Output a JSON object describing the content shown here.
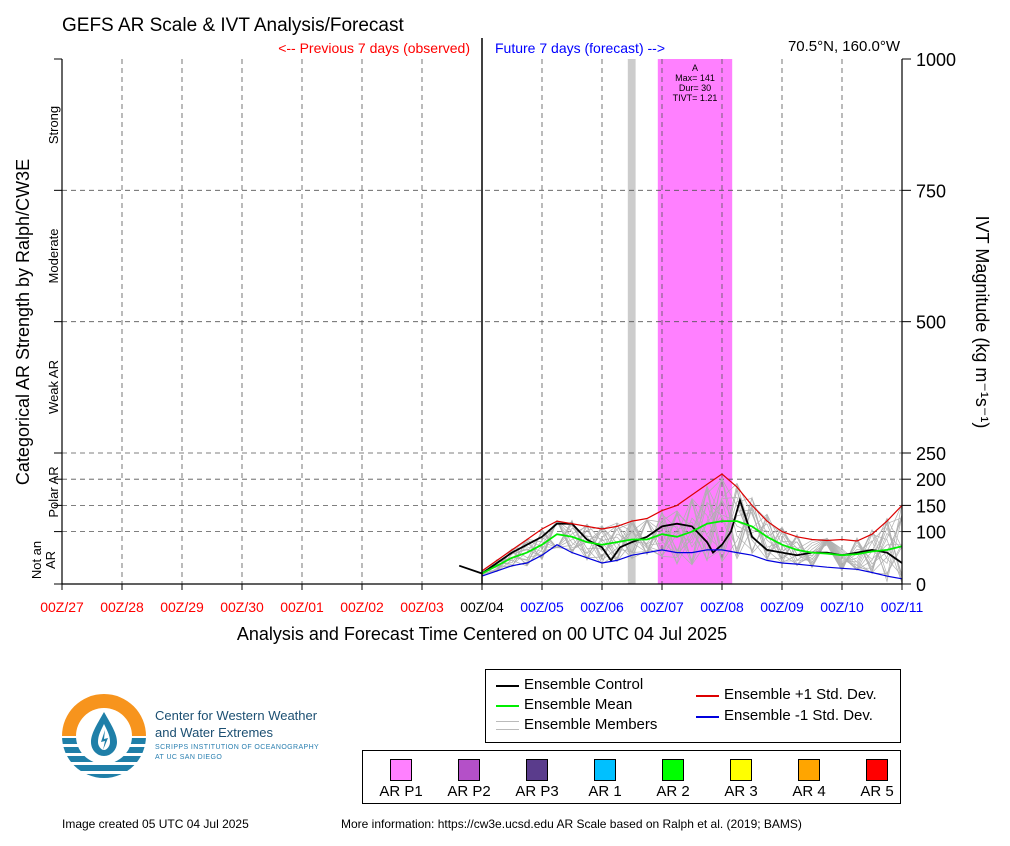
{
  "chart_data": {
    "type": "line",
    "title": "GEFS AR Scale & IVT Analysis/Forecast",
    "location": "70.5°N, 160.0°W",
    "observed_label": "<-- Previous 7 days (observed)",
    "forecast_label": "Future 7 days (forecast) -->",
    "xlabel": "Analysis and Forecast Time Centered on 00 UTC 04 Jul 2025",
    "ylabel_left": "Categorical AR Strength by Ralph/CW3E",
    "ylabel_right": "IVT Magnitude (kg m⁻¹s⁻¹)",
    "x_ticks": [
      "00Z/27",
      "00Z/28",
      "00Z/29",
      "00Z/30",
      "00Z/01",
      "00Z/02",
      "00Z/03",
      "00Z/04",
      "00Z/05",
      "00Z/06",
      "00Z/07",
      "00Z/08",
      "00Z/09",
      "00Z/10",
      "00Z/11"
    ],
    "x_tick_colors": [
      "#ff0000",
      "#ff0000",
      "#ff0000",
      "#ff0000",
      "#ff0000",
      "#ff0000",
      "#ff0000",
      "#000000",
      "#0000ff",
      "#0000ff",
      "#0000ff",
      "#0000ff",
      "#0000ff",
      "#0000ff",
      "#0000ff"
    ],
    "analysis_time_day": 7,
    "y_ticks": [
      0,
      100,
      150,
      200,
      250,
      500,
      750,
      1000
    ],
    "ylim": [
      0,
      1000
    ],
    "xlim_days": [
      0,
      14
    ],
    "categories": [
      "Not an AR",
      "Polar AR",
      "Weak AR",
      "Moderate",
      "Strong"
    ],
    "ar_events": [
      {
        "label": "A",
        "max": "Max= 141",
        "dur": "Dur= 30",
        "tivt": "TIVT= 1.21",
        "start_day": 9.93,
        "end_day": 11.17,
        "color": "#ff80ff"
      }
    ],
    "gray_bar": {
      "start_day": 9.43,
      "end_day": 9.56,
      "color": "#cccccc"
    },
    "series": [
      {
        "name": "Ensemble Control",
        "color": "#000000",
        "points": [
          [
            6.62,
            35
          ],
          [
            7.0,
            20
          ],
          [
            7.25,
            40
          ],
          [
            7.5,
            60
          ],
          [
            7.75,
            75
          ],
          [
            8.0,
            90
          ],
          [
            8.25,
            115
          ],
          [
            8.5,
            115
          ],
          [
            8.75,
            85
          ],
          [
            9.0,
            70
          ],
          [
            9.15,
            45
          ],
          [
            9.3,
            70
          ],
          [
            9.5,
            80
          ],
          [
            9.75,
            90
          ],
          [
            10.0,
            110
          ],
          [
            10.25,
            115
          ],
          [
            10.5,
            110
          ],
          [
            10.75,
            80
          ],
          [
            10.85,
            60
          ],
          [
            11.0,
            75
          ],
          [
            11.15,
            100
          ],
          [
            11.3,
            160
          ],
          [
            11.5,
            90
          ],
          [
            11.75,
            65
          ],
          [
            12.0,
            60
          ],
          [
            12.25,
            55
          ],
          [
            12.5,
            60
          ],
          [
            12.75,
            60
          ],
          [
            13.0,
            55
          ],
          [
            13.25,
            60
          ],
          [
            13.5,
            65
          ],
          [
            13.75,
            60
          ],
          [
            14.0,
            40
          ]
        ]
      },
      {
        "name": "Ensemble Mean",
        "color": "#00ee00",
        "points": [
          [
            7.0,
            20
          ],
          [
            7.25,
            35
          ],
          [
            7.5,
            50
          ],
          [
            7.75,
            60
          ],
          [
            8.0,
            75
          ],
          [
            8.25,
            95
          ],
          [
            8.5,
            90
          ],
          [
            8.75,
            80
          ],
          [
            9.0,
            75
          ],
          [
            9.25,
            80
          ],
          [
            9.5,
            85
          ],
          [
            9.75,
            85
          ],
          [
            10.0,
            95
          ],
          [
            10.25,
            90
          ],
          [
            10.5,
            100
          ],
          [
            10.75,
            115
          ],
          [
            11.0,
            120
          ],
          [
            11.25,
            120
          ],
          [
            11.5,
            110
          ],
          [
            11.75,
            90
          ],
          [
            12.0,
            75
          ],
          [
            12.25,
            65
          ],
          [
            12.5,
            60
          ],
          [
            12.75,
            58
          ],
          [
            13.0,
            55
          ],
          [
            13.25,
            57
          ],
          [
            13.5,
            62
          ],
          [
            13.75,
            65
          ],
          [
            14.0,
            72
          ]
        ]
      },
      {
        "name": "Ensemble +1 Std. Dev.",
        "color": "#dd0000",
        "points": [
          [
            7.0,
            25
          ],
          [
            7.25,
            45
          ],
          [
            7.5,
            65
          ],
          [
            7.75,
            85
          ],
          [
            8.0,
            105
          ],
          [
            8.25,
            120
          ],
          [
            8.5,
            115
          ],
          [
            8.75,
            110
          ],
          [
            9.0,
            105
          ],
          [
            9.25,
            110
          ],
          [
            9.5,
            120
          ],
          [
            9.75,
            125
          ],
          [
            10.0,
            140
          ],
          [
            10.25,
            150
          ],
          [
            10.5,
            170
          ],
          [
            10.75,
            190
          ],
          [
            11.0,
            210
          ],
          [
            11.25,
            185
          ],
          [
            11.5,
            150
          ],
          [
            11.75,
            120
          ],
          [
            12.0,
            100
          ],
          [
            12.25,
            90
          ],
          [
            12.5,
            85
          ],
          [
            12.75,
            83
          ],
          [
            13.0,
            85
          ],
          [
            13.25,
            82
          ],
          [
            13.5,
            95
          ],
          [
            13.75,
            120
          ],
          [
            14.0,
            150
          ]
        ]
      },
      {
        "name": "Ensemble -1 Std. Dev.",
        "color": "#0000dd",
        "points": [
          [
            7.0,
            15
          ],
          [
            7.25,
            25
          ],
          [
            7.5,
            35
          ],
          [
            7.75,
            40
          ],
          [
            8.0,
            55
          ],
          [
            8.25,
            75
          ],
          [
            8.5,
            60
          ],
          [
            8.75,
            50
          ],
          [
            9.0,
            40
          ],
          [
            9.25,
            45
          ],
          [
            9.5,
            55
          ],
          [
            9.75,
            60
          ],
          [
            10.0,
            65
          ],
          [
            10.25,
            60
          ],
          [
            10.5,
            60
          ],
          [
            10.75,
            65
          ],
          [
            11.0,
            65
          ],
          [
            11.25,
            60
          ],
          [
            11.5,
            55
          ],
          [
            11.75,
            45
          ],
          [
            12.0,
            40
          ],
          [
            12.25,
            38
          ],
          [
            12.5,
            35
          ],
          [
            12.75,
            32
          ],
          [
            13.0,
            30
          ],
          [
            13.25,
            28
          ],
          [
            13.5,
            22
          ],
          [
            13.75,
            15
          ],
          [
            14.0,
            10
          ]
        ]
      }
    ],
    "members_name": "Ensemble Members",
    "members_color": "#b0b0b0"
  },
  "legend": {
    "control": "Ensemble Control",
    "mean": "Ensemble Mean",
    "members": "Ensemble Members",
    "plus_std": "Ensemble +1 Std. Dev.",
    "minus_std": "Ensemble -1 Std. Dev."
  },
  "ar_scale_legend": [
    {
      "label": "AR P1",
      "color": "#ff80ff"
    },
    {
      "label": "AR P2",
      "color": "#b450c8"
    },
    {
      "label": "AR P3",
      "color": "#5a3c8c"
    },
    {
      "label": "AR 1",
      "color": "#00c0ff"
    },
    {
      "label": "AR 2",
      "color": "#00ff00"
    },
    {
      "label": "AR 3",
      "color": "#ffff00"
    },
    {
      "label": "AR 4",
      "color": "#ffa500"
    },
    {
      "label": "AR 5",
      "color": "#ff0000"
    }
  ],
  "logo": {
    "line1": "Center for Western Weather",
    "line2": "and Water Extremes",
    "line3": "SCRIPPS INSTITUTION OF OCEANOGRAPHY",
    "line4": "AT UC SAN DIEGO"
  },
  "footer": {
    "created": "Image created 05 UTC 04 Jul 2025",
    "more_info": "More information: https://cw3e.ucsd.edu AR Scale based on Ralph et al. (2019; BAMS)"
  }
}
